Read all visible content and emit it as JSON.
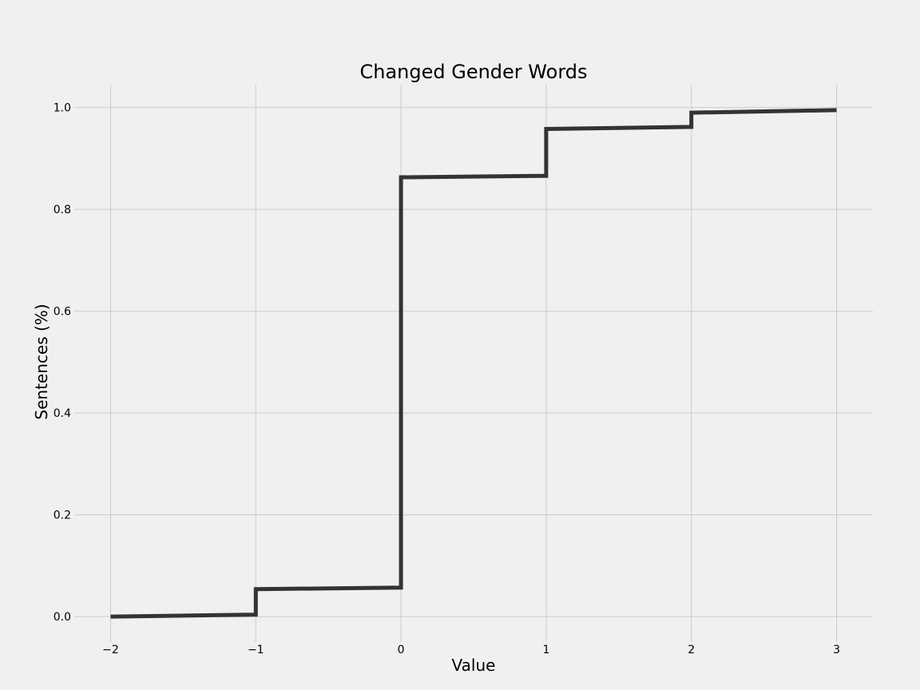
{
  "chart_data": {
    "type": "line",
    "title": "Changed Gender Words",
    "xlabel": "Value",
    "ylabel": "Sentences (%)",
    "x_ticks": [
      -2,
      -1,
      0,
      1,
      2,
      3
    ],
    "x_tick_labels": [
      "−2",
      "−1",
      "0",
      "1",
      "2",
      "3"
    ],
    "y_ticks": [
      0.0,
      0.2,
      0.4,
      0.6,
      0.8,
      1.0
    ],
    "y_tick_labels": [
      "0.0",
      "0.2",
      "0.4",
      "0.6",
      "0.8",
      "1.0"
    ],
    "xlim": [
      -2.25,
      3.25
    ],
    "ylim": [
      -0.05,
      1.045
    ],
    "grid": true,
    "series": [
      {
        "color": "#333333",
        "x": [
          -2,
          -1,
          -1,
          0,
          0,
          1,
          1,
          2,
          2,
          3
        ],
        "y": [
          0.0,
          0.004,
          0.054,
          0.057,
          0.863,
          0.866,
          0.958,
          0.962,
          0.99,
          0.995
        ]
      }
    ]
  }
}
